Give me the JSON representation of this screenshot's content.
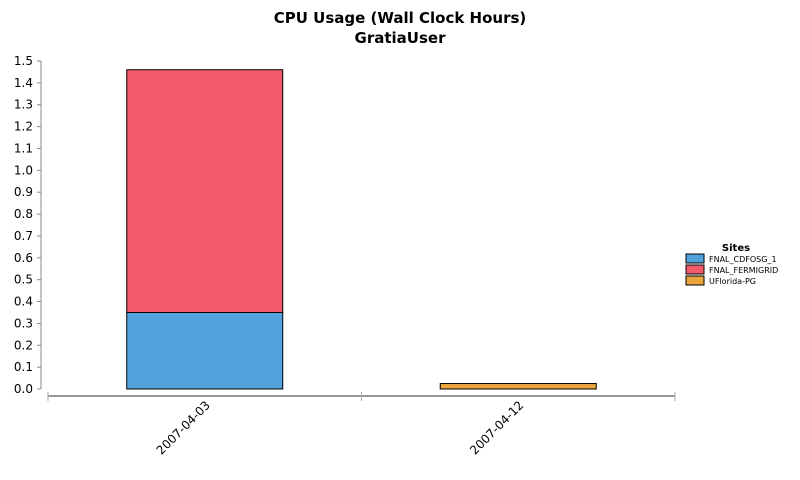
{
  "chart_data": {
    "type": "bar",
    "stacked": true,
    "title": "CPU Usage (Wall Clock Hours)",
    "subtitle": "GratiaUser",
    "xlabel": "",
    "ylabel": "",
    "categories": [
      "2007-04-03",
      "2007-04-12"
    ],
    "ylim": [
      0,
      1.5
    ],
    "y_ticks": [
      "0.0",
      "0.1",
      "0.2",
      "0.3",
      "0.4",
      "0.5",
      "0.6",
      "0.7",
      "0.8",
      "0.9",
      "1.0",
      "1.1",
      "1.2",
      "1.3",
      "1.4",
      "1.5"
    ],
    "series": [
      {
        "name": "FNAL_CDFOSG_1",
        "values": [
          0.35,
          0
        ],
        "color": "#52a3db"
      },
      {
        "name": "FNAL_FERMIGRID",
        "values": [
          1.11,
          0
        ],
        "color": "#f25a6b"
      },
      {
        "name": "UFlorida-PG",
        "values": [
          0,
          0.025
        ],
        "color": "#eaa53c"
      }
    ],
    "legend": {
      "title": "Sites",
      "placement": "right"
    },
    "grid": false
  }
}
